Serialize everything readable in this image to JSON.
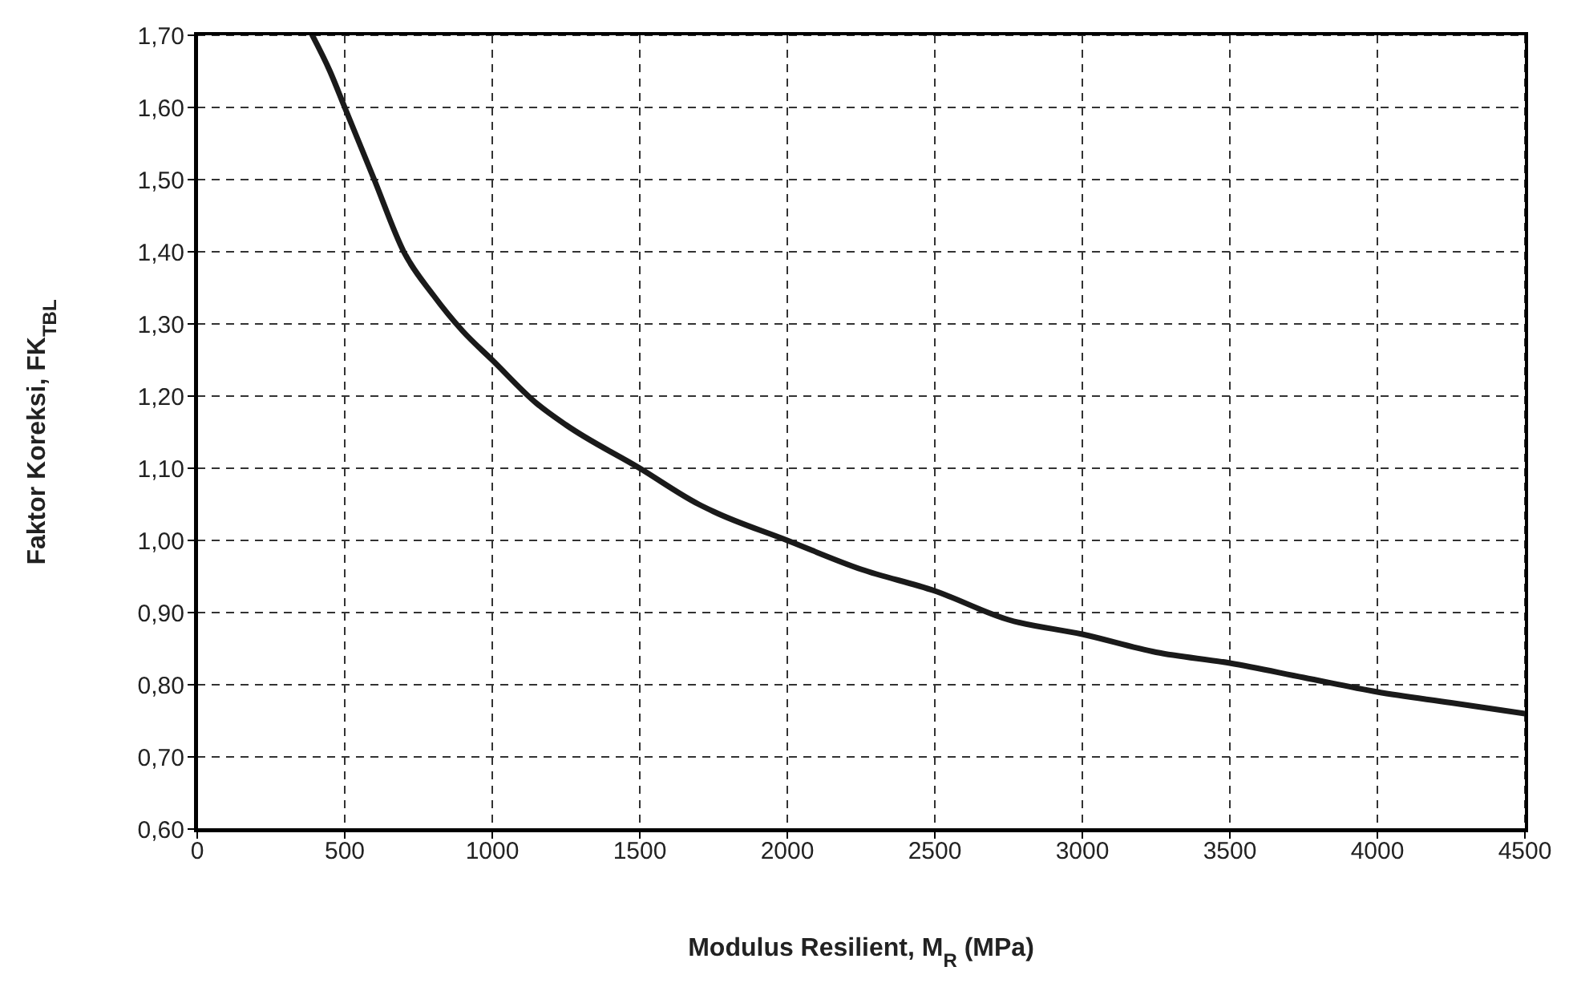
{
  "chart_data": {
    "type": "line",
    "xlabel": "Modulus Resilient, M$_{R}$ (MPa)",
    "ylabel": "Faktor Koreksi, FK$_{TBL}$",
    "x": [
      390,
      450,
      500,
      600,
      700,
      800,
      900,
      1000,
      1150,
      1250,
      1500,
      1700,
      1750,
      2000,
      2250,
      2500,
      2750,
      3000,
      3250,
      3500,
      3750,
      4000,
      4250,
      4500
    ],
    "series": [
      {
        "color": "#1a1a1a",
        "values": [
          1.7,
          1.65,
          1.6,
          1.5,
          1.4,
          1.34,
          1.29,
          1.25,
          1.19,
          1.16,
          1.1,
          1.05,
          1.04,
          1.0,
          0.96,
          0.93,
          0.89,
          0.87,
          0.845,
          0.83,
          0.81,
          0.79,
          0.775,
          0.76
        ]
      }
    ],
    "xlim": [
      0,
      4500
    ],
    "xticks": [
      0,
      500,
      1000,
      1500,
      2000,
      2500,
      3000,
      3500,
      4000,
      4500
    ],
    "ylim": [
      0.6,
      1.7
    ],
    "yticks": [
      {
        "value": 0.6,
        "label": "0,60"
      },
      {
        "value": 0.7,
        "label": "0,70"
      },
      {
        "value": 0.8,
        "label": "0,80"
      },
      {
        "value": 0.9,
        "label": "0,90"
      },
      {
        "value": 1.0,
        "label": "1,00"
      },
      {
        "value": 1.1,
        "label": "1,10"
      },
      {
        "value": 1.2,
        "label": "1,20"
      },
      {
        "value": 1.3,
        "label": "1,30"
      },
      {
        "value": 1.4,
        "label": "1,40"
      },
      {
        "value": 1.5,
        "label": "1,50"
      },
      {
        "value": 1.6,
        "label": "1,60"
      },
      {
        "value": 1.7,
        "label": "1,70"
      }
    ],
    "grid": true,
    "marker": "none",
    "line_style": "solid"
  }
}
